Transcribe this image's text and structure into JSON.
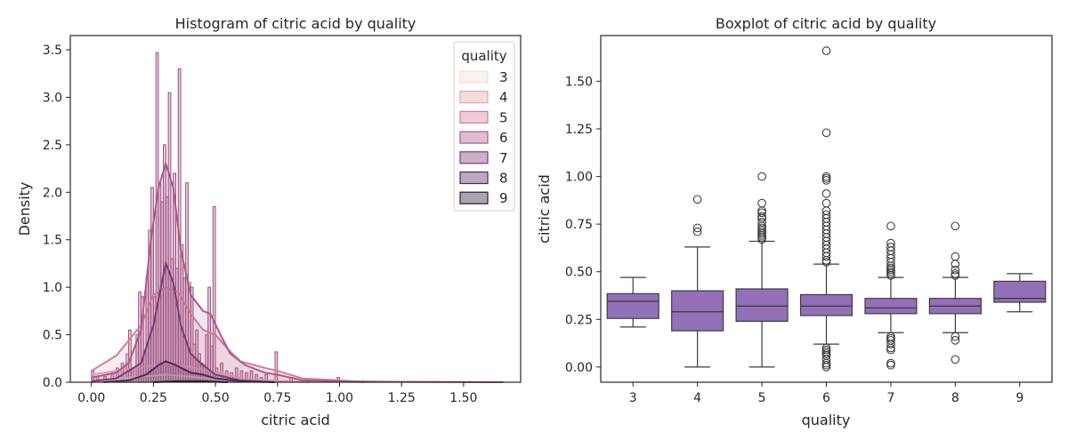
{
  "chart_data": [
    {
      "type": "histogram",
      "title": "Histogram of citric acid by quality",
      "xlabel": "citric acid",
      "ylabel": "Density",
      "xlim": [
        -0.085,
        1.73
      ],
      "ylim": [
        0,
        3.65
      ],
      "xticks": [
        0.0,
        0.25,
        0.5,
        0.75,
        1.0,
        1.25,
        1.5
      ],
      "xtick_labels": [
        "0.00",
        "0.25",
        "0.50",
        "0.75",
        "1.00",
        "1.25",
        "1.50"
      ],
      "yticks": [
        0.0,
        0.5,
        1.0,
        1.5,
        2.0,
        2.5,
        3.0,
        3.5
      ],
      "ytick_labels": [
        "0.0",
        "0.5",
        "1.0",
        "1.5",
        "2.0",
        "2.5",
        "3.0",
        "3.5"
      ],
      "grid": false,
      "legend": {
        "title": "quality",
        "placement": "top-right"
      },
      "series": [
        {
          "name": "3",
          "color": "#f3ded6",
          "kde": [
            [
              0.0,
              0
            ],
            [
              0.1,
              0.03
            ],
            [
              0.2,
              0.06
            ],
            [
              0.3,
              0.08
            ],
            [
              0.4,
              0.06
            ],
            [
              0.5,
              0.03
            ],
            [
              0.6,
              0.01
            ],
            [
              0.7,
              0
            ]
          ]
        },
        {
          "name": "4",
          "color": "#e3a7ab",
          "kde": [
            [
              0.0,
              0.08
            ],
            [
              0.1,
              0.12
            ],
            [
              0.2,
              0.16
            ],
            [
              0.3,
              0.19
            ],
            [
              0.4,
              0.16
            ],
            [
              0.5,
              0.1
            ],
            [
              0.6,
              0.05
            ],
            [
              0.7,
              0.02
            ],
            [
              0.88,
              0
            ]
          ]
        },
        {
          "name": "5",
          "color": "#d17e9b",
          "kde": [
            [
              0.0,
              0.12
            ],
            [
              0.1,
              0.28
            ],
            [
              0.2,
              0.6
            ],
            [
              0.25,
              0.92
            ],
            [
              0.3,
              1.0
            ],
            [
              0.35,
              0.95
            ],
            [
              0.4,
              0.72
            ],
            [
              0.45,
              0.55
            ],
            [
              0.5,
              0.5
            ],
            [
              0.55,
              0.35
            ],
            [
              0.6,
              0.22
            ],
            [
              0.7,
              0.15
            ],
            [
              0.75,
              0.12
            ],
            [
              0.85,
              0.04
            ],
            [
              1.0,
              0.02
            ],
            [
              1.1,
              0
            ]
          ]
        },
        {
          "name": "6",
          "color": "#aa5a8c",
          "kde": [
            [
              0.0,
              0.05
            ],
            [
              0.1,
              0.1
            ],
            [
              0.15,
              0.2
            ],
            [
              0.2,
              0.55
            ],
            [
              0.24,
              1.5
            ],
            [
              0.27,
              2.05
            ],
            [
              0.3,
              2.3
            ],
            [
              0.33,
              2.05
            ],
            [
              0.36,
              1.4
            ],
            [
              0.4,
              0.92
            ],
            [
              0.45,
              0.75
            ],
            [
              0.48,
              0.72
            ],
            [
              0.52,
              0.5
            ],
            [
              0.56,
              0.3
            ],
            [
              0.62,
              0.18
            ],
            [
              0.7,
              0.1
            ],
            [
              0.75,
              0.08
            ],
            [
              0.85,
              0.02
            ],
            [
              1.0,
              0.01
            ],
            [
              1.2,
              0.005
            ],
            [
              1.66,
              0
            ]
          ]
        },
        {
          "name": "7",
          "color": "#7a3d76",
          "kde": [
            [
              0.0,
              0.01
            ],
            [
              0.1,
              0.04
            ],
            [
              0.2,
              0.2
            ],
            [
              0.25,
              0.6
            ],
            [
              0.28,
              1.0
            ],
            [
              0.3,
              1.25
            ],
            [
              0.33,
              1.05
            ],
            [
              0.36,
              0.6
            ],
            [
              0.4,
              0.3
            ],
            [
              0.45,
              0.18
            ],
            [
              0.5,
              0.08
            ],
            [
              0.6,
              0.02
            ],
            [
              0.74,
              0
            ]
          ]
        },
        {
          "name": "8",
          "color": "#4d2a5e",
          "kde": [
            [
              0.05,
              0
            ],
            [
              0.15,
              0.02
            ],
            [
              0.22,
              0.08
            ],
            [
              0.27,
              0.18
            ],
            [
              0.3,
              0.22
            ],
            [
              0.34,
              0.18
            ],
            [
              0.4,
              0.1
            ],
            [
              0.45,
              0.08
            ],
            [
              0.5,
              0.04
            ],
            [
              0.6,
              0.01
            ],
            [
              0.74,
              0
            ]
          ]
        },
        {
          "name": "9",
          "color": "#2b1a3a",
          "kde": [
            [
              0.25,
              0
            ],
            [
              0.3,
              0.006
            ],
            [
              0.35,
              0.01
            ],
            [
              0.45,
              0.01
            ],
            [
              0.5,
              0.005
            ],
            [
              0.55,
              0
            ]
          ]
        }
      ],
      "histogram_bins": {
        "bin_width": 0.01,
        "color": "#b06e98",
        "edge_color": "#a0507f",
        "x": [
          0.0,
          0.02,
          0.05,
          0.08,
          0.1,
          0.12,
          0.14,
          0.15,
          0.16,
          0.18,
          0.19,
          0.2,
          0.21,
          0.22,
          0.23,
          0.24,
          0.25,
          0.26,
          0.27,
          0.28,
          0.29,
          0.3,
          0.31,
          0.32,
          0.33,
          0.34,
          0.35,
          0.36,
          0.37,
          0.38,
          0.39,
          0.4,
          0.41,
          0.42,
          0.43,
          0.44,
          0.45,
          0.46,
          0.47,
          0.48,
          0.49,
          0.5,
          0.52,
          0.54,
          0.56,
          0.58,
          0.6,
          0.62,
          0.64,
          0.66,
          0.68,
          0.7,
          0.74,
          0.8,
          0.99
        ],
        "density": [
          0.12,
          0.06,
          0.06,
          0.1,
          0.15,
          0.2,
          0.3,
          0.55,
          0.15,
          0.5,
          0.95,
          0.9,
          0.3,
          1.1,
          1.6,
          2.05,
          0.9,
          3.47,
          2.1,
          1.9,
          2.5,
          1.95,
          3.05,
          1.3,
          2.2,
          1.2,
          3.3,
          1.45,
          1.1,
          2.1,
          1.05,
          1.0,
          0.4,
          0.55,
          0.3,
          0.2,
          0.18,
          0.5,
          1.0,
          0.38,
          1.85,
          0.15,
          0.2,
          0.12,
          0.1,
          0.15,
          0.12,
          0.1,
          0.12,
          0.08,
          0.05,
          0.08,
          0.32,
          0.05,
          0.05
        ]
      }
    },
    {
      "type": "box",
      "title": "Boxplot of citric acid by quality",
      "xlabel": "quality",
      "ylabel": "citric acid",
      "ylim": [
        -0.08,
        1.74
      ],
      "yticks": [
        0.0,
        0.25,
        0.5,
        0.75,
        1.0,
        1.25,
        1.5
      ],
      "ytick_labels": [
        "0.00",
        "0.25",
        "0.50",
        "0.75",
        "1.00",
        "1.25",
        "1.50"
      ],
      "categories": [
        "3",
        "4",
        "5",
        "6",
        "7",
        "8",
        "9"
      ],
      "box_color": "#9370b8",
      "grid": false,
      "boxes": [
        {
          "category": "3",
          "whisker_low": 0.21,
          "q1": 0.255,
          "median": 0.345,
          "q3": 0.385,
          "whisker_high": 0.47,
          "outliers": []
        },
        {
          "category": "4",
          "whisker_low": 0.0,
          "q1": 0.19,
          "median": 0.29,
          "q3": 0.4,
          "whisker_high": 0.63,
          "outliers": [
            0.71,
            0.73,
            0.88
          ]
        },
        {
          "category": "5",
          "whisker_low": 0.0,
          "q1": 0.24,
          "median": 0.32,
          "q3": 0.41,
          "whisker_high": 0.66,
          "outliers": [
            0.67,
            0.68,
            0.69,
            0.7,
            0.71,
            0.72,
            0.73,
            0.74,
            0.76,
            0.78,
            0.79,
            0.81,
            0.82,
            0.86,
            1.0
          ]
        },
        {
          "category": "6",
          "whisker_low": 0.12,
          "q1": 0.27,
          "median": 0.32,
          "q3": 0.38,
          "whisker_high": 0.54,
          "outliers": [
            0.0,
            0.01,
            0.02,
            0.04,
            0.06,
            0.07,
            0.08,
            0.09,
            0.1,
            0.55,
            0.56,
            0.58,
            0.6,
            0.62,
            0.64,
            0.66,
            0.68,
            0.7,
            0.72,
            0.74,
            0.76,
            0.78,
            0.8,
            0.82,
            0.86,
            0.91,
            0.98,
            0.99,
            1.0,
            1.23,
            1.66
          ]
        },
        {
          "category": "7",
          "whisker_low": 0.18,
          "q1": 0.28,
          "median": 0.31,
          "q3": 0.36,
          "whisker_high": 0.47,
          "outliers": [
            0.01,
            0.02,
            0.09,
            0.1,
            0.12,
            0.14,
            0.15,
            0.16,
            0.48,
            0.49,
            0.5,
            0.51,
            0.52,
            0.53,
            0.55,
            0.57,
            0.59,
            0.61,
            0.63,
            0.65,
            0.74
          ]
        },
        {
          "category": "8",
          "whisker_low": 0.18,
          "q1": 0.28,
          "median": 0.32,
          "q3": 0.36,
          "whisker_high": 0.47,
          "outliers": [
            0.04,
            0.14,
            0.16,
            0.48,
            0.49,
            0.51,
            0.54,
            0.58,
            0.74
          ]
        },
        {
          "category": "9",
          "whisker_low": 0.29,
          "q1": 0.34,
          "median": 0.36,
          "q3": 0.45,
          "whisker_high": 0.49,
          "outliers": []
        }
      ]
    }
  ]
}
